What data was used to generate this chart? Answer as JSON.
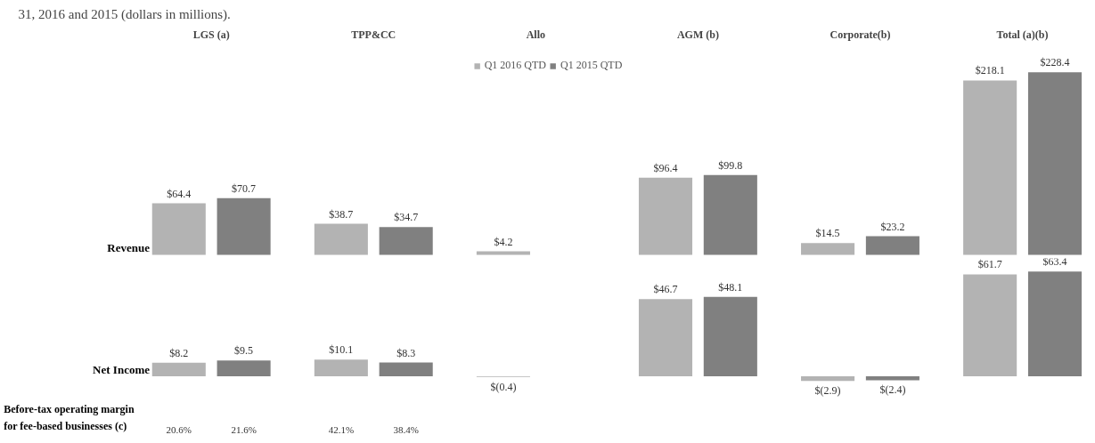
{
  "chart_data": [
    {
      "type": "bar",
      "title": "31, 2016 and 2015 (dollars in millions).",
      "ylabel": "Revenue",
      "categories": [
        "LGS (a)",
        "TPP&CC",
        "Allo",
        "AGM (b)",
        "Corporate(b)",
        "Total (a)(b)"
      ],
      "legend": "top",
      "series": [
        {
          "name": "Q1 2016 QTD",
          "color": "#b3b3b3",
          "values": [
            64.4,
            38.7,
            4.2,
            96.4,
            14.5,
            218.1
          ],
          "value_labels": [
            "$64.4",
            "$38.7",
            "$4.2",
            "$96.4",
            "$14.5",
            "$218.1"
          ]
        },
        {
          "name": "Q1 2015 QTD",
          "color": "#808080",
          "values": [
            70.7,
            34.7,
            null,
            99.8,
            23.2,
            228.4
          ],
          "value_labels": [
            "$70.7",
            "$34.7",
            null,
            "$99.8",
            "$23.2",
            "$228.4"
          ]
        }
      ]
    },
    {
      "type": "bar",
      "ylabel": "Net Income",
      "series": [
        {
          "color": "#b3b3b3",
          "values": [
            8.2,
            10.1,
            -0.4,
            46.7,
            -2.9,
            61.7
          ],
          "value_labels": [
            "$8.2",
            "$10.1",
            "$(0.4)",
            "$46.7",
            "$(2.9)",
            "$61.7"
          ]
        },
        {
          "color": "#808080",
          "values": [
            9.5,
            8.3,
            null,
            48.1,
            -2.4,
            63.4
          ],
          "value_labels": [
            "$9.5",
            "$8.3",
            null,
            "$48.1",
            "$(2.4)",
            "$63.4"
          ]
        }
      ]
    },
    {
      "type": "other",
      "ylabel": "Before-tax operating margin\nfor fee-based businesses (c)",
      "annotations": [
        "20.6%",
        "21.6%",
        "42.1%",
        "38.4%"
      ]
    }
  ]
}
